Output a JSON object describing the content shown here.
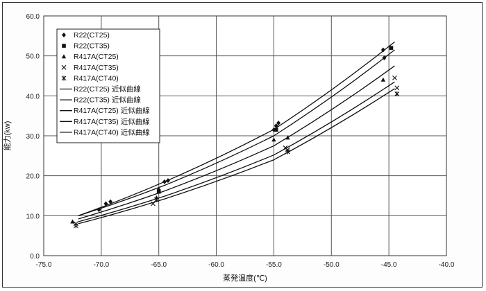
{
  "chart_data": {
    "type": "scatter",
    "title": "",
    "xlabel": "蒸発温度(℃)",
    "ylabel": "能力(kw)",
    "xlim": [
      -75,
      -40
    ],
    "ylim": [
      0,
      60
    ],
    "x_ticks": [
      -75,
      -70,
      -65,
      -60,
      -55,
      -50,
      -45,
      -40
    ],
    "y_ticks": [
      0,
      10,
      20,
      30,
      40,
      50,
      60
    ],
    "x_tick_labels": [
      "-75.0",
      "-70.0",
      "-65.0",
      "-60.0",
      "-55.0",
      "-50.0",
      "-45.0",
      "-40.0"
    ],
    "y_tick_labels": [
      "0.0",
      "10.0",
      "20.0",
      "30.0",
      "40.0",
      "50.0",
      "60.0"
    ],
    "grid": true,
    "legend_position": "top-left",
    "series": [
      {
        "name": "R22(CT25)",
        "marker": "diamond",
        "x": [
          -70.2,
          -69.6,
          -69.2,
          -65,
          -64.5,
          -64.2,
          -55,
          -54.8,
          -54.6,
          -45.5,
          -45.4
        ],
        "y": [
          11.5,
          13,
          13.5,
          16.5,
          18.5,
          18.8,
          31.5,
          32.5,
          33.2,
          51.5,
          49.5
        ]
      },
      {
        "name": "R22(CT35)",
        "marker": "square",
        "x": [
          -65,
          -54.8,
          -44.8
        ],
        "y": [
          16,
          31.5,
          52
        ]
      },
      {
        "name": "R417A(CT25)",
        "marker": "triangle",
        "x": [
          -72.5,
          -65.2,
          -55,
          -53.8,
          -45.5
        ],
        "y": [
          8.5,
          14.5,
          29,
          29.5,
          44
        ]
      },
      {
        "name": "R417A(CT35)",
        "marker": "x",
        "x": [
          -72.2,
          -65.5,
          -54,
          -53.8,
          -44.5,
          -44.3
        ],
        "y": [
          8,
          13,
          27,
          26.5,
          44.5,
          42
        ]
      },
      {
        "name": "R417A(CT40)",
        "marker": "asterisk",
        "x": [
          -72.2,
          -65.2,
          -53.8,
          -44.3
        ],
        "y": [
          7.5,
          14,
          26,
          40.5
        ]
      }
    ],
    "fit_lines": [
      {
        "name": "R22(CT25) 近似曲線",
        "x": [
          -72,
          -64.5,
          -55,
          -44.5
        ],
        "y": [
          10,
          18.5,
          31.6,
          53.5
        ]
      },
      {
        "name": "R22(CT35) 近似曲線",
        "x": [
          -72,
          -64.5,
          -55,
          -44.5
        ],
        "y": [
          10,
          17.6,
          30,
          51.5
        ]
      },
      {
        "name": "R417A(CT25) 近似曲線",
        "x": [
          -72,
          -64.5,
          -55,
          -44.5
        ],
        "y": [
          9.2,
          16.2,
          27.5,
          47.5
        ]
      },
      {
        "name": "R417A(CT35) 近似曲線",
        "x": [
          -72,
          -64.5,
          -55,
          -44.5
        ],
        "y": [
          8.5,
          14.9,
          25.2,
          43.5
        ]
      },
      {
        "name": "R417A(CT40) 近似曲線",
        "x": [
          -72,
          -64.5,
          -55,
          -44.5
        ],
        "y": [
          8,
          14.2,
          24.0,
          41.8
        ]
      }
    ]
  }
}
